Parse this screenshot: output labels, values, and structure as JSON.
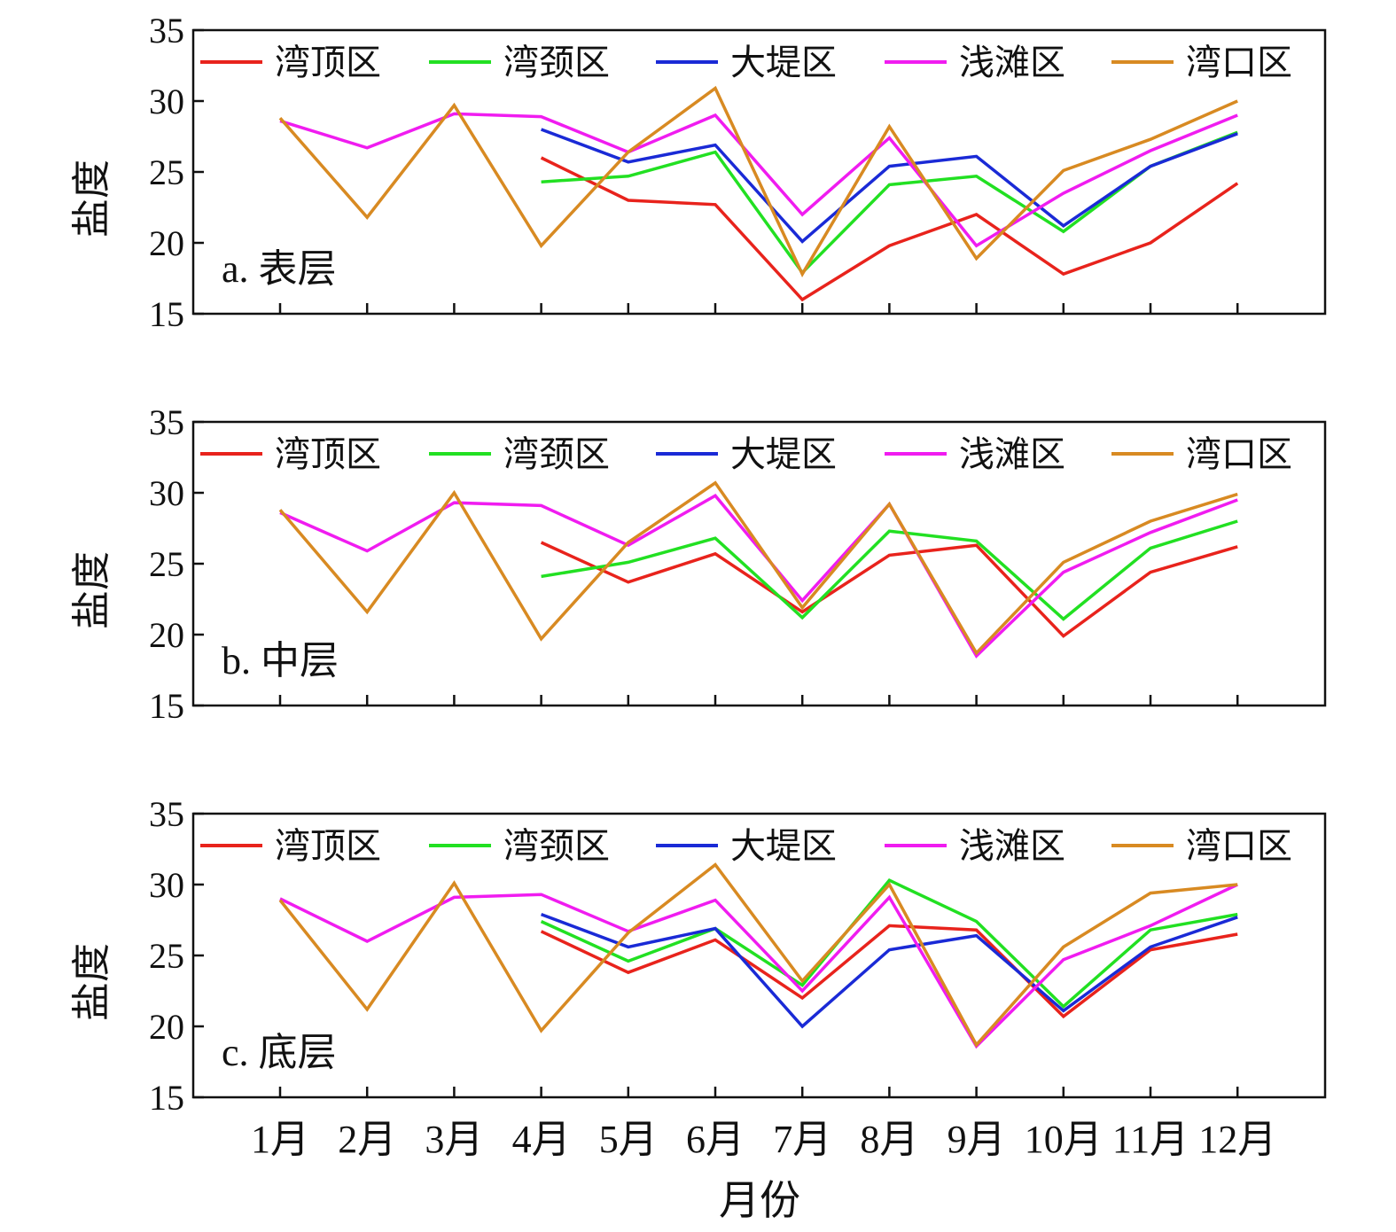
{
  "chart_data": {
    "type": "line",
    "xlabel": "月份",
    "ylabel": "盐度",
    "categories": [
      "1月",
      "2月",
      "3月",
      "4月",
      "5月",
      "6月",
      "7月",
      "8月",
      "9月",
      "10月",
      "11月",
      "12月"
    ],
    "ylim": [
      15,
      35
    ],
    "yticks": [
      "15",
      "20",
      "25",
      "30",
      "35"
    ],
    "legend_location": "top",
    "colors": {
      "湾顶区": "#e8231c",
      "湾颈区": "#22e022",
      "大堤区": "#1a2ad6",
      "浅滩区": "#f01cf0",
      "湾口区": "#d88a22"
    },
    "panels": [
      {
        "label": "a. 表层",
        "series": [
          {
            "name": "湾顶区",
            "values": [
              null,
              null,
              null,
              26.0,
              23.0,
              22.7,
              16.0,
              19.8,
              22.0,
              17.8,
              20.0,
              24.2
            ]
          },
          {
            "name": "湾颈区",
            "values": [
              null,
              null,
              null,
              24.3,
              24.7,
              26.4,
              17.9,
              24.1,
              24.7,
              20.8,
              25.4,
              27.8
            ]
          },
          {
            "name": "大堤区",
            "values": [
              null,
              null,
              null,
              28.0,
              25.7,
              26.9,
              20.1,
              25.4,
              26.1,
              21.2,
              25.4,
              27.7
            ]
          },
          {
            "name": "浅滩区",
            "values": [
              28.6,
              26.7,
              29.1,
              28.9,
              26.4,
              29.0,
              22.0,
              27.4,
              19.8,
              23.5,
              26.5,
              29.0
            ]
          },
          {
            "name": "湾口区",
            "values": [
              28.8,
              21.8,
              29.7,
              19.8,
              26.4,
              30.9,
              17.8,
              28.2,
              18.9,
              25.1,
              27.3,
              30.0
            ]
          }
        ]
      },
      {
        "label": "b. 中层",
        "series": [
          {
            "name": "湾顶区",
            "values": [
              null,
              null,
              null,
              26.5,
              23.7,
              25.7,
              21.6,
              25.6,
              26.3,
              19.9,
              24.4,
              26.2
            ]
          },
          {
            "name": "湾颈区",
            "values": [
              null,
              null,
              null,
              24.1,
              25.1,
              26.8,
              21.2,
              27.3,
              26.6,
              21.1,
              26.1,
              28.0
            ]
          },
          {
            "name": "大堤区",
            "values": [
              null,
              null,
              null,
              null,
              null,
              null,
              null,
              null,
              null,
              null,
              null,
              null
            ]
          },
          {
            "name": "浅滩区",
            "values": [
              28.6,
              25.9,
              29.3,
              29.1,
              26.3,
              29.8,
              22.4,
              29.2,
              18.5,
              24.4,
              27.2,
              29.5
            ]
          },
          {
            "name": "湾口区",
            "values": [
              28.8,
              21.6,
              30.0,
              19.7,
              26.5,
              30.7,
              21.9,
              29.2,
              18.7,
              25.1,
              28.0,
              29.9
            ]
          }
        ]
      },
      {
        "label": "c. 底层",
        "series": [
          {
            "name": "湾顶区",
            "values": [
              null,
              null,
              null,
              26.7,
              23.8,
              26.1,
              22.0,
              27.1,
              26.8,
              20.7,
              25.4,
              26.5
            ]
          },
          {
            "name": "湾颈区",
            "values": [
              null,
              null,
              null,
              27.4,
              24.6,
              26.9,
              22.9,
              30.3,
              27.4,
              21.4,
              26.8,
              27.9
            ]
          },
          {
            "name": "大堤区",
            "values": [
              null,
              null,
              null,
              27.9,
              25.6,
              26.9,
              20.0,
              25.4,
              26.4,
              21.1,
              25.6,
              27.7
            ]
          },
          {
            "name": "浅滩区",
            "values": [
              29.0,
              26.0,
              29.1,
              29.3,
              26.7,
              28.9,
              22.5,
              29.1,
              18.6,
              24.7,
              27.1,
              30.0
            ]
          },
          {
            "name": "湾口区",
            "values": [
              28.9,
              21.2,
              30.1,
              19.7,
              26.6,
              31.4,
              23.2,
              30.0,
              18.7,
              25.6,
              29.4,
              30.0
            ]
          }
        ]
      }
    ]
  }
}
